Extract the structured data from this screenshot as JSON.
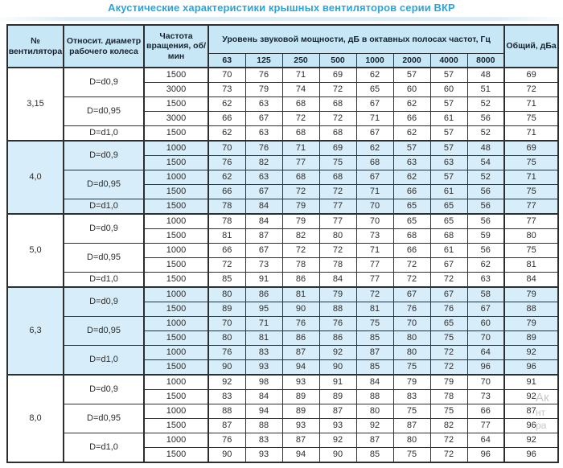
{
  "title": "Акустические характеристики крышных вентиляторов серии ВКР",
  "colors": {
    "accent": "#2aa5da",
    "header_bg": "#c8e7f6",
    "shaded_section_bg": "#d7edf9",
    "border": "#2e2e2e"
  },
  "table": {
    "headers": {
      "fan": "№ вентилятора",
      "diameter": "Относит. диаметр рабочего колеса",
      "speed": "Частота вращения, об/мин",
      "spl_group": "Уровень звуковой мощности, дБ в октавных полосах частот, Гц",
      "frequencies": [
        "63",
        "125",
        "250",
        "500",
        "1000",
        "2000",
        "4000",
        "8000"
      ],
      "total": "Общий, дБа"
    },
    "sections": [
      {
        "fan": "3,15",
        "shaded": false,
        "groups": [
          {
            "diameter": "D=d0,9",
            "rows": [
              {
                "speed": "1500",
                "levels": [
                  70,
                  76,
                  71,
                  69,
                  62,
                  57,
                  57,
                  48
                ],
                "total": 69
              },
              {
                "speed": "3000",
                "levels": [
                  73,
                  79,
                  74,
                  72,
                  65,
                  60,
                  60,
                  51
                ],
                "total": 72
              }
            ]
          },
          {
            "diameter": "D=d0,95",
            "rows": [
              {
                "speed": "1500",
                "levels": [
                  62,
                  63,
                  68,
                  68,
                  67,
                  62,
                  57,
                  52
                ],
                "total": 71
              },
              {
                "speed": "3000",
                "levels": [
                  66,
                  67,
                  72,
                  72,
                  71,
                  66,
                  61,
                  56
                ],
                "total": 75
              }
            ]
          },
          {
            "diameter": "D=d1,0",
            "rows": [
              {
                "speed": "1500",
                "levels": [
                  62,
                  63,
                  68,
                  68,
                  67,
                  62,
                  57,
                  52
                ],
                "total": 71
              }
            ]
          }
        ]
      },
      {
        "fan": "4,0",
        "shaded": true,
        "groups": [
          {
            "diameter": "D=d0,9",
            "rows": [
              {
                "speed": "1000",
                "levels": [
                  70,
                  76,
                  71,
                  69,
                  62,
                  57,
                  57,
                  48
                ],
                "total": 69
              },
              {
                "speed": "1500",
                "levels": [
                  76,
                  82,
                  77,
                  75,
                  68,
                  63,
                  63,
                  54
                ],
                "total": 75
              }
            ]
          },
          {
            "diameter": "D=d0,95",
            "rows": [
              {
                "speed": "1000",
                "levels": [
                  62,
                  63,
                  68,
                  68,
                  67,
                  62,
                  57,
                  52
                ],
                "total": 71
              },
              {
                "speed": "1500",
                "levels": [
                  66,
                  67,
                  72,
                  72,
                  71,
                  66,
                  61,
                  56
                ],
                "total": 75
              }
            ]
          },
          {
            "diameter": "D=d1,0",
            "rows": [
              {
                "speed": "1500",
                "levels": [
                  78,
                  84,
                  79,
                  77,
                  70,
                  65,
                  65,
                  56
                ],
                "total": 77
              }
            ]
          }
        ]
      },
      {
        "fan": "5,0",
        "shaded": false,
        "groups": [
          {
            "diameter": "D=d0,9",
            "rows": [
              {
                "speed": "1000",
                "levels": [
                  78,
                  84,
                  79,
                  77,
                  70,
                  65,
                  65,
                  56
                ],
                "total": 77
              },
              {
                "speed": "1500",
                "levels": [
                  81,
                  87,
                  82,
                  80,
                  73,
                  68,
                  68,
                  59
                ],
                "total": 80
              }
            ]
          },
          {
            "diameter": "D=d0,95",
            "rows": [
              {
                "speed": "1000",
                "levels": [
                  66,
                  67,
                  72,
                  72,
                  71,
                  66,
                  61,
                  56
                ],
                "total": 75
              },
              {
                "speed": "1500",
                "levels": [
                  72,
                  73,
                  78,
                  78,
                  77,
                  72,
                  67,
                  62
                ],
                "total": 81
              }
            ]
          },
          {
            "diameter": "D=d1,0",
            "rows": [
              {
                "speed": "1500",
                "levels": [
                  85,
                  91,
                  86,
                  84,
                  77,
                  72,
                  72,
                  63
                ],
                "total": 84
              }
            ]
          }
        ]
      },
      {
        "fan": "6,3",
        "shaded": true,
        "groups": [
          {
            "diameter": "D=d0,9",
            "rows": [
              {
                "speed": "1000",
                "levels": [
                  80,
                  86,
                  81,
                  79,
                  72,
                  67,
                  67,
                  58
                ],
                "total": 79
              },
              {
                "speed": "1500",
                "levels": [
                  89,
                  95,
                  90,
                  88,
                  81,
                  76,
                  76,
                  67
                ],
                "total": 88
              }
            ]
          },
          {
            "diameter": "D=d0,95",
            "rows": [
              {
                "speed": "1000",
                "levels": [
                  70,
                  71,
                  76,
                  76,
                  75,
                  70,
                  65,
                  60
                ],
                "total": 79
              },
              {
                "speed": "1500",
                "levels": [
                  80,
                  81,
                  86,
                  86,
                  85,
                  80,
                  75,
                  70
                ],
                "total": 89
              }
            ]
          },
          {
            "diameter": "D=d1,0",
            "rows": [
              {
                "speed": "1000",
                "levels": [
                  76,
                  83,
                  87,
                  92,
                  87,
                  80,
                  72,
                  64
                ],
                "total": 92
              },
              {
                "speed": "1500",
                "levels": [
                  90,
                  93,
                  94,
                  90,
                  85,
                  75,
                  72,
                  96
                ],
                "total": 96
              }
            ]
          }
        ]
      },
      {
        "fan": "8,0",
        "shaded": false,
        "groups": [
          {
            "diameter": "D=d0,9",
            "rows": [
              {
                "speed": "1000",
                "levels": [
                  92,
                  98,
                  93,
                  91,
                  84,
                  79,
                  79,
                  70
                ],
                "total": 91
              },
              {
                "speed": "1500",
                "levels": [
                  83,
                  84,
                  89,
                  89,
                  88,
                  83,
                  78,
                  73
                ],
                "total": 92
              }
            ]
          },
          {
            "diameter": "D=d0,95",
            "rows": [
              {
                "speed": "1000",
                "levels": [
                  88,
                  94,
                  89,
                  87,
                  80,
                  75,
                  75,
                  66
                ],
                "total": 87
              },
              {
                "speed": "1500",
                "levels": [
                  87,
                  88,
                  93,
                  93,
                  92,
                  87,
                  82,
                  77
                ],
                "total": 96
              }
            ]
          },
          {
            "diameter": "D=d1,0",
            "rows": [
              {
                "speed": "1000",
                "levels": [
                  76,
                  83,
                  87,
                  92,
                  87,
                  80,
                  72,
                  64
                ],
                "total": 92
              },
              {
                "speed": "1500",
                "levels": [
                  90,
                  93,
                  94,
                  90,
                  85,
                  75,
                  72,
                  96
                ],
                "total": 96
              }
            ]
          }
        ]
      }
    ]
  },
  "watermark": {
    "lines": [
      "Ак",
      "нт",
      "ра"
    ]
  }
}
